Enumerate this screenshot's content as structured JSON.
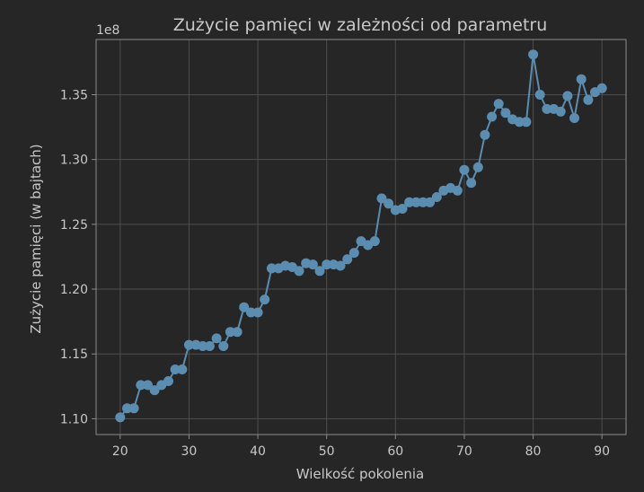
{
  "chart_data": {
    "type": "line",
    "title": "Zużycie pamięci w zależności od parametru",
    "xlabel": "Wielkość pokolenia",
    "ylabel": "Zużycie pamięci (w bajtach)",
    "y_offset_label": "1e8",
    "xlim": [
      16.5,
      93.5
    ],
    "ylim": [
      1.0878,
      1.3926
    ],
    "xticks": [
      20,
      30,
      40,
      50,
      60,
      70,
      80,
      90
    ],
    "xtick_labels": [
      "20",
      "30",
      "40",
      "50",
      "60",
      "70",
      "80",
      "90"
    ],
    "yticks": [
      1.1,
      1.15,
      1.2,
      1.25,
      1.3,
      1.35
    ],
    "ytick_labels": [
      "1.10",
      "1.15",
      "1.20",
      "1.25",
      "1.30",
      "1.35"
    ],
    "grid": true,
    "colors": {
      "background": "#262626",
      "series": "#5b8db0",
      "grid": "#4d4d4d",
      "text": "#c8c8c8",
      "spine": "#8a8a8a"
    },
    "series": [
      {
        "x": [
          20,
          21,
          22,
          23,
          24,
          25,
          26,
          27,
          28,
          29,
          30,
          31,
          32,
          33,
          34,
          35,
          36,
          37,
          38,
          39,
          40,
          41,
          42,
          43,
          44,
          45,
          46,
          47,
          48,
          49,
          50,
          51,
          52,
          53,
          54,
          55,
          56,
          57,
          58,
          59,
          60,
          61,
          62,
          63,
          64,
          65,
          66,
          67,
          68,
          69,
          70,
          71,
          72,
          73,
          74,
          75,
          76,
          77,
          78,
          79,
          80,
          81,
          82,
          83,
          84,
          85,
          86,
          87,
          88,
          89,
          90
        ],
        "values": [
          1.101,
          1.108,
          1.108,
          1.126,
          1.126,
          1.122,
          1.126,
          1.129,
          1.138,
          1.138,
          1.157,
          1.157,
          1.156,
          1.156,
          1.162,
          1.156,
          1.167,
          1.167,
          1.186,
          1.182,
          1.182,
          1.192,
          1.216,
          1.216,
          1.218,
          1.217,
          1.214,
          1.22,
          1.219,
          1.214,
          1.219,
          1.219,
          1.218,
          1.223,
          1.228,
          1.237,
          1.234,
          1.237,
          1.27,
          1.266,
          1.261,
          1.262,
          1.267,
          1.267,
          1.267,
          1.267,
          1.271,
          1.276,
          1.278,
          1.276,
          1.292,
          1.282,
          1.294,
          1.319,
          1.333,
          1.343,
          1.336,
          1.331,
          1.329,
          1.329,
          1.381,
          1.35,
          1.339,
          1.339,
          1.337,
          1.349,
          1.332,
          1.362,
          1.346,
          1.352,
          1.355
        ]
      }
    ]
  }
}
